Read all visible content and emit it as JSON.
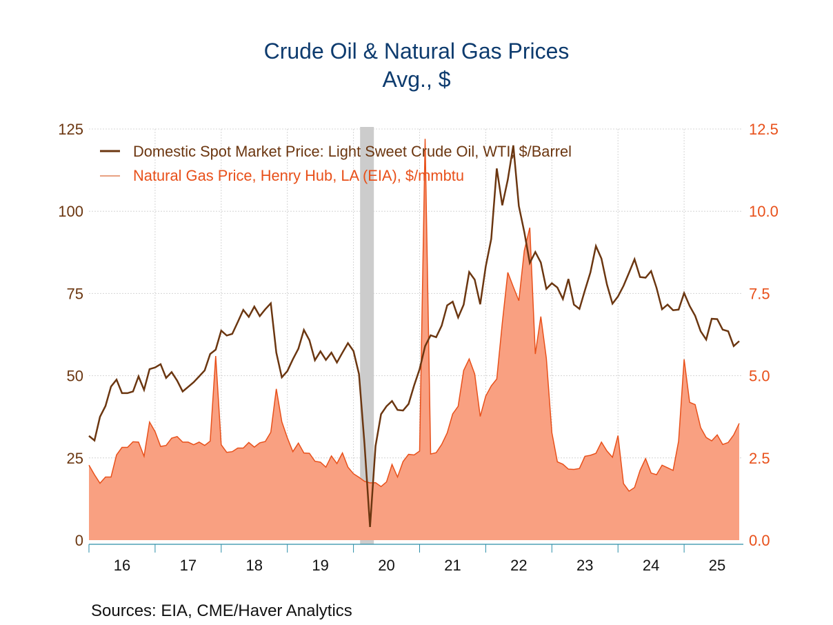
{
  "chart_data": {
    "type": "line",
    "title": "Crude Oil & Natural Gas Prices",
    "subtitle": "Avg., $",
    "source": "Sources:   EIA, CME/Haver Analytics",
    "x_start": "2016-01",
    "x_frequency": "monthly",
    "x_tick_labels": [
      "16",
      "17",
      "18",
      "19",
      "20",
      "21",
      "22",
      "23",
      "24",
      "25"
    ],
    "left_axis": {
      "ylim": [
        0,
        125
      ],
      "ticks": [
        "0",
        "25",
        "50",
        "75",
        "100",
        "125"
      ]
    },
    "right_axis": {
      "ylim": [
        0,
        12.5
      ],
      "ticks": [
        "0.0",
        "2.5",
        "5.0",
        "7.5",
        "10.0",
        "12.5"
      ]
    },
    "recession": {
      "start": "2020-02",
      "end": "2020-04"
    },
    "grid": true,
    "legend_placement": "top-left",
    "series": [
      {
        "name": "Domestic Spot Market Price: Light Sweet Crude Oil, WTI, $/Barrel",
        "axis": "left",
        "color": "#6b3610",
        "values": [
          31.7,
          30.3,
          37.5,
          40.8,
          46.7,
          48.8,
          44.7,
          44.7,
          45.2,
          49.8,
          45.7,
          52.0,
          52.5,
          53.5,
          49.3,
          51.1,
          48.5,
          45.2,
          46.6,
          48.0,
          49.8,
          51.6,
          56.6,
          57.9,
          63.7,
          62.2,
          62.7,
          66.3,
          70.0,
          67.9,
          71.0,
          68.1,
          70.2,
          72.0,
          57.0,
          49.5,
          51.4,
          55.0,
          58.2,
          63.9,
          60.8,
          54.7,
          57.4,
          54.8,
          57.0,
          54.0,
          57.0,
          59.9,
          57.5,
          50.5,
          29.2,
          4.0,
          28.6,
          38.3,
          40.7,
          42.3,
          39.6,
          39.4,
          41.4,
          47.0,
          52.0,
          59.0,
          62.3,
          61.7,
          65.2,
          71.4,
          72.5,
          67.7,
          71.6,
          81.5,
          79.2,
          71.7,
          83.2,
          91.6,
          113.0,
          101.8,
          109.6,
          120.0,
          101.6,
          93.7,
          84.3,
          87.6,
          84.4,
          76.4,
          78.1,
          76.8,
          73.3,
          79.4,
          71.6,
          70.3,
          76.0,
          81.4,
          89.4,
          85.6,
          77.7,
          71.9,
          74.1,
          77.3,
          81.3,
          85.4,
          80.0,
          79.8,
          81.8,
          76.7,
          70.2,
          71.6,
          69.9,
          70.1,
          75.1,
          71.2,
          68.2,
          63.5,
          61.0,
          67.3,
          67.2,
          64.0,
          63.5,
          59.0,
          60.5
        ]
      },
      {
        "name": "Natural Gas Price, Henry Hub, LA (EIA), $/mmbtu",
        "axis": "right",
        "color": "#e8501a",
        "fill": "#f9a081",
        "values": [
          2.28,
          1.99,
          1.73,
          1.92,
          1.92,
          2.59,
          2.82,
          2.82,
          2.99,
          2.98,
          2.55,
          3.59,
          3.3,
          2.85,
          2.88,
          3.1,
          3.15,
          2.98,
          2.98,
          2.9,
          2.98,
          2.88,
          3.01,
          5.6,
          2.9,
          2.67,
          2.69,
          2.8,
          2.8,
          2.97,
          2.83,
          2.96,
          3.0,
          3.28,
          4.6,
          3.6,
          3.11,
          2.69,
          2.95,
          2.65,
          2.64,
          2.4,
          2.37,
          2.22,
          2.56,
          2.33,
          2.65,
          2.22,
          2.02,
          1.91,
          1.79,
          1.74,
          1.75,
          1.63,
          1.77,
          2.3,
          1.92,
          2.39,
          2.61,
          2.59,
          2.71,
          12.2,
          2.62,
          2.66,
          2.91,
          3.26,
          3.84,
          4.07,
          5.16,
          5.51,
          5.05,
          3.76,
          4.38,
          4.69,
          4.9,
          6.6,
          8.14,
          7.7,
          7.28,
          8.8,
          9.5,
          5.66,
          6.8,
          5.53,
          3.27,
          2.38,
          2.31,
          2.16,
          2.15,
          2.18,
          2.55,
          2.58,
          2.64,
          2.98,
          2.71,
          2.52,
          3.18,
          1.72,
          1.49,
          1.6,
          2.12,
          2.48,
          2.04,
          1.99,
          2.28,
          2.2,
          2.12,
          3.01,
          5.5,
          4.19,
          4.12,
          3.42,
          3.12,
          3.02,
          3.2,
          2.91,
          2.97,
          3.2,
          3.55
        ]
      }
    ]
  }
}
